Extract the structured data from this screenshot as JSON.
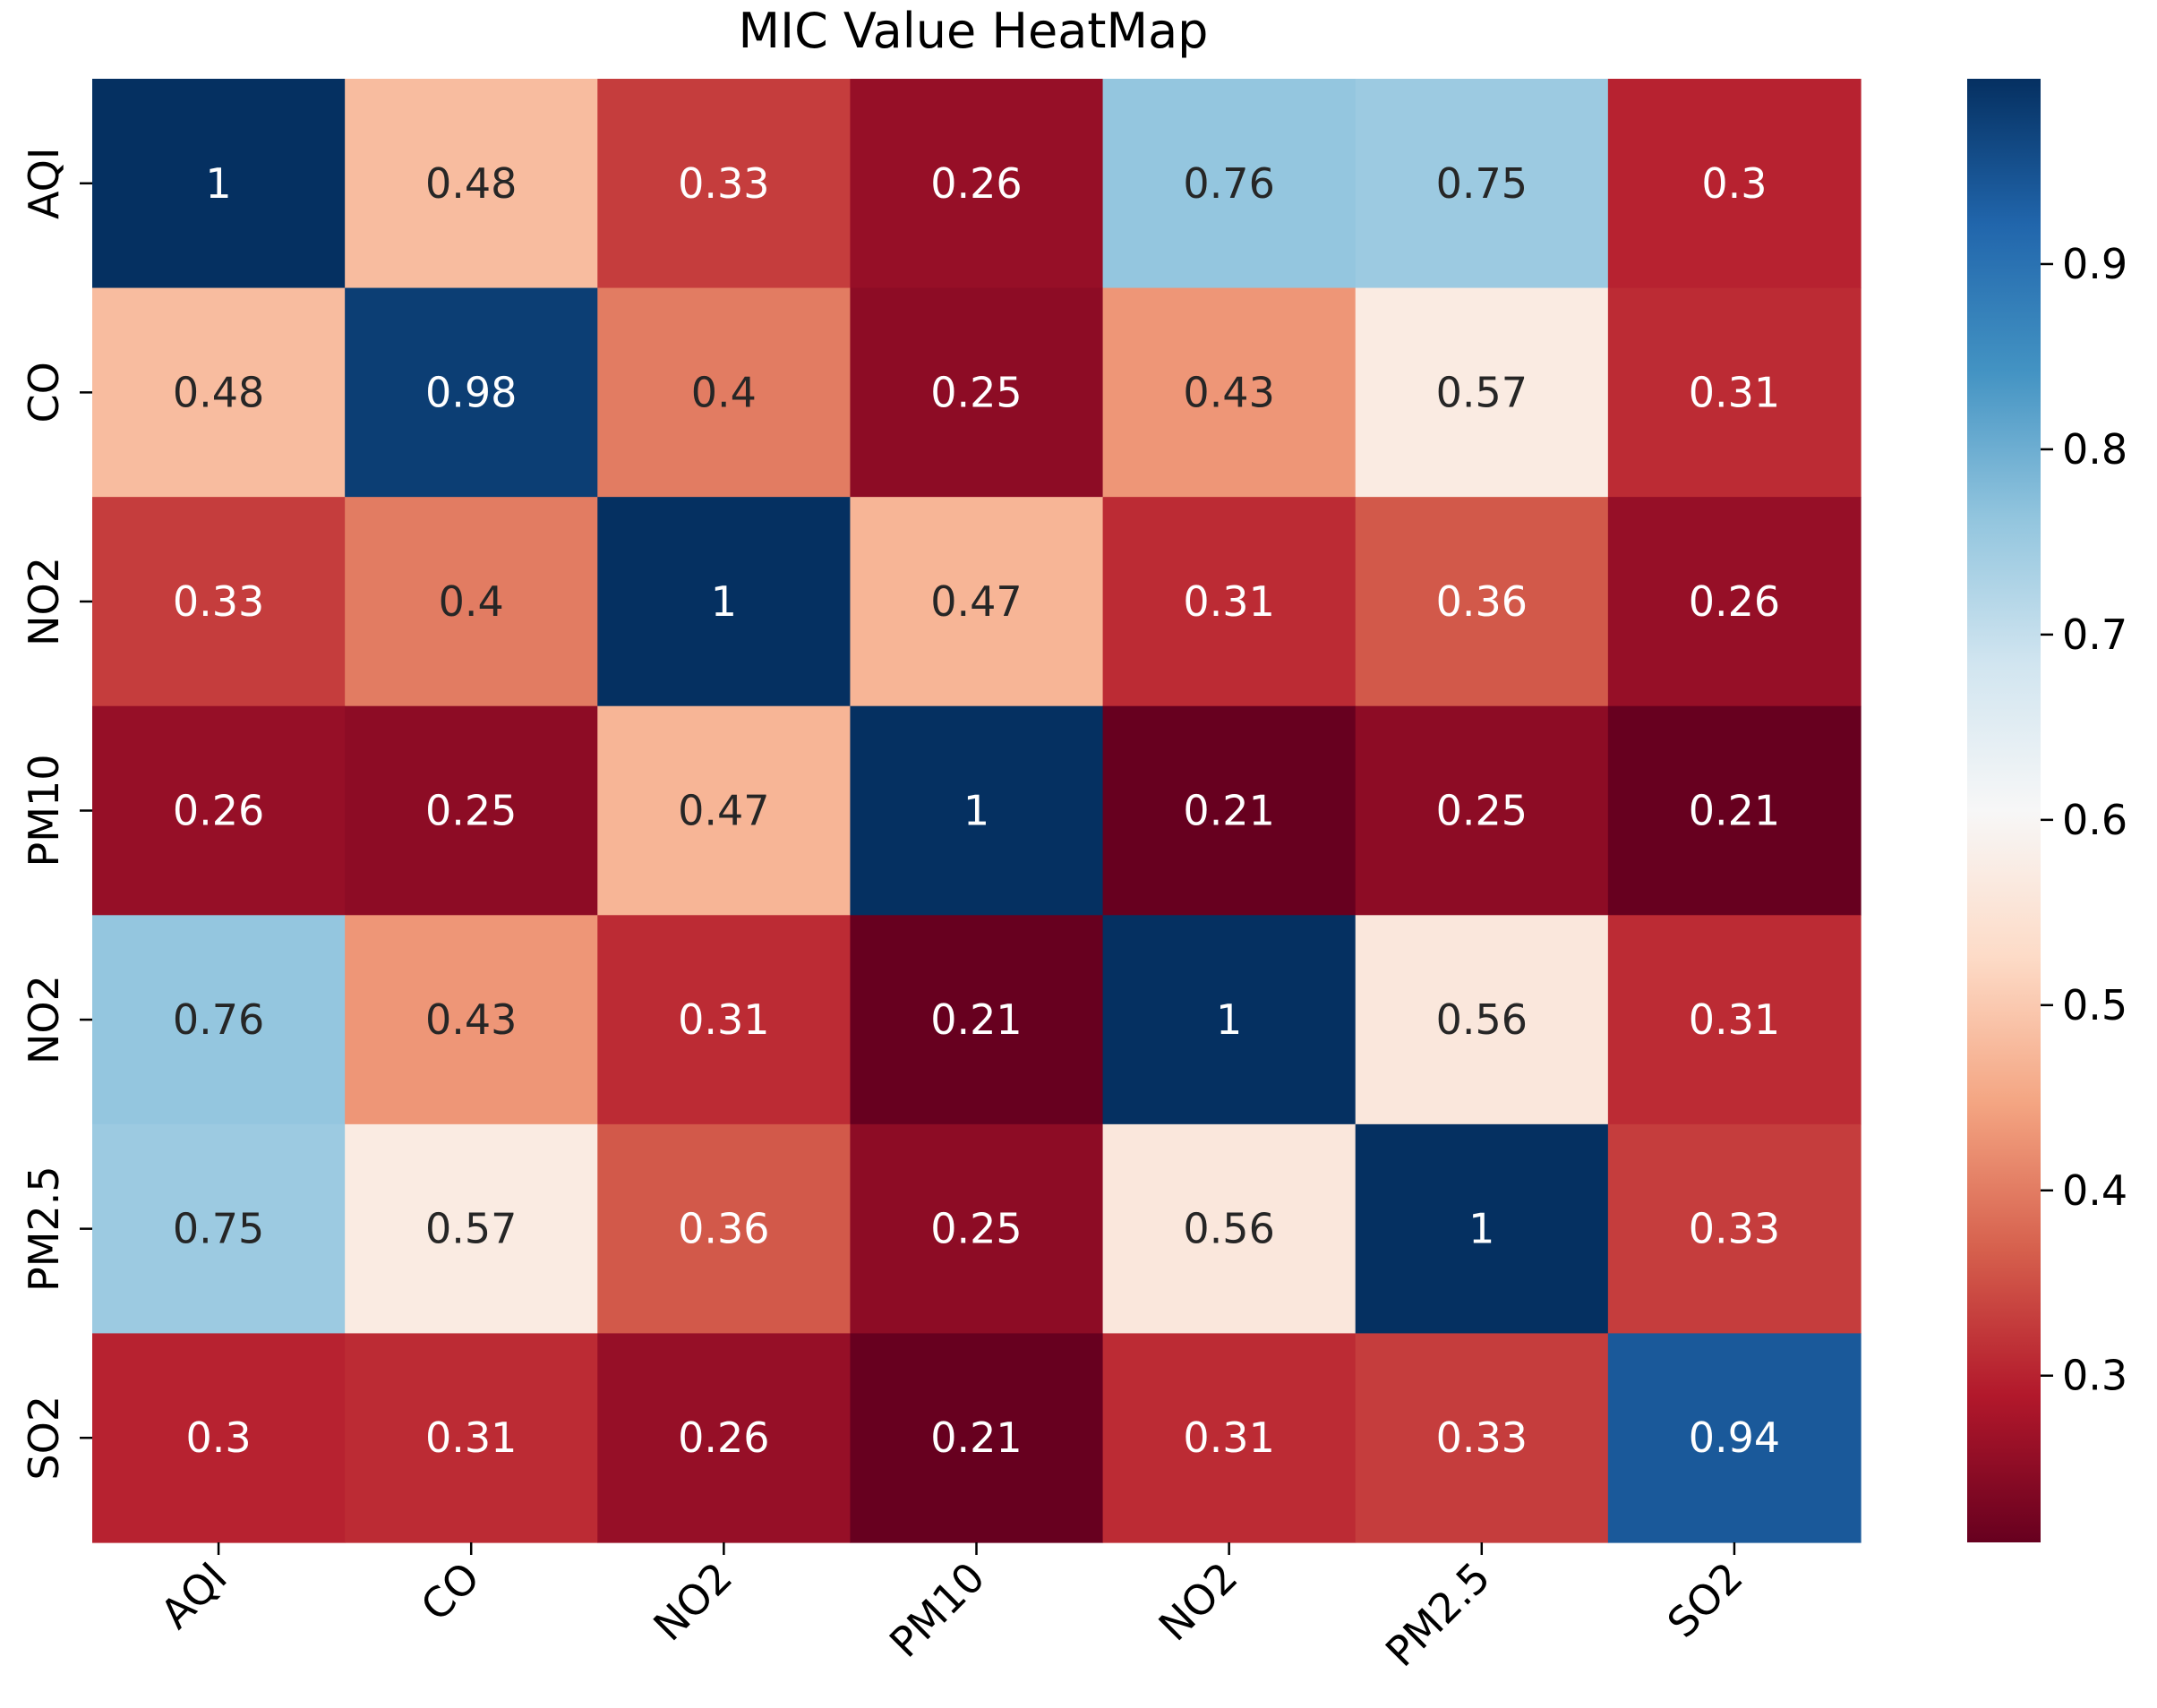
{
  "chart_data": {
    "type": "heatmap",
    "title": "MIC Value HeatMap",
    "xlabel": "",
    "ylabel": "",
    "row_labels": [
      "AQI",
      "CO",
      "NO2",
      "PM10",
      "NO2",
      "PM2.5",
      "SO2"
    ],
    "col_labels": [
      "AQI",
      "CO",
      "NO2",
      "PM10",
      "NO2",
      "PM2.5",
      "SO2"
    ],
    "values": [
      [
        1.0,
        0.48,
        0.33,
        0.26,
        0.76,
        0.75,
        0.3
      ],
      [
        0.48,
        0.98,
        0.4,
        0.25,
        0.43,
        0.57,
        0.31
      ],
      [
        0.33,
        0.4,
        1.0,
        0.47,
        0.31,
        0.36,
        0.26
      ],
      [
        0.26,
        0.25,
        0.47,
        1.0,
        0.21,
        0.25,
        0.21
      ],
      [
        0.76,
        0.43,
        0.31,
        0.21,
        1.0,
        0.56,
        0.31
      ],
      [
        0.75,
        0.57,
        0.36,
        0.25,
        0.56,
        1.0,
        0.33
      ],
      [
        0.3,
        0.31,
        0.26,
        0.21,
        0.31,
        0.33,
        0.94
      ]
    ],
    "annotations": [
      [
        "1",
        "0.48",
        "0.33",
        "0.26",
        "0.76",
        "0.75",
        "0.3"
      ],
      [
        "0.48",
        "0.98",
        "0.4",
        "0.25",
        "0.43",
        "0.57",
        "0.31"
      ],
      [
        "0.33",
        "0.4",
        "1",
        "0.47",
        "0.31",
        "0.36",
        "0.26"
      ],
      [
        "0.26",
        "0.25",
        "0.47",
        "1",
        "0.21",
        "0.25",
        "0.21"
      ],
      [
        "0.76",
        "0.43",
        "0.31",
        "0.21",
        "1",
        "0.56",
        "0.31"
      ],
      [
        "0.75",
        "0.57",
        "0.36",
        "0.25",
        "0.56",
        "1",
        "0.33"
      ],
      [
        "0.3",
        "0.31",
        "0.26",
        "0.21",
        "0.31",
        "0.33",
        "0.94"
      ]
    ],
    "colormap": "RdBu",
    "vmin": 0.21,
    "vmax": 1.0,
    "colorbar_ticks": [
      0.3,
      0.4,
      0.5,
      0.6,
      0.7,
      0.8,
      0.9
    ],
    "colorbar_tick_labels": [
      "0.3",
      "0.4",
      "0.5",
      "0.6",
      "0.7",
      "0.8",
      "0.9"
    ]
  },
  "colors": {
    "text_dark": "#262626",
    "text_light": "#ffffff",
    "axis": "#000000",
    "rdbu_stops": [
      "#67001f",
      "#b2182b",
      "#d6604d",
      "#f4a582",
      "#fddbc7",
      "#f7f7f7",
      "#d1e5f0",
      "#92c5de",
      "#4393c3",
      "#2166ac",
      "#053061"
    ]
  }
}
